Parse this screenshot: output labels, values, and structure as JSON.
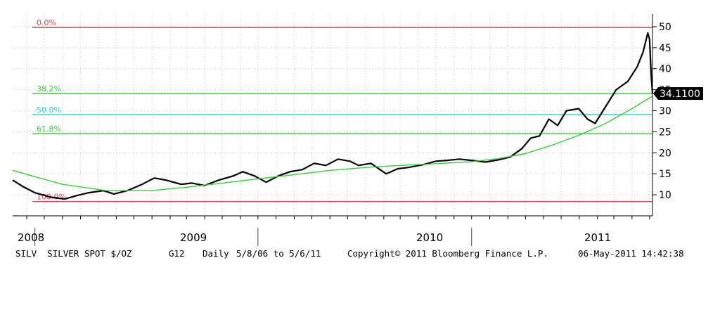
{
  "chart_data": {
    "type": "line",
    "title": "",
    "xlabel": "",
    "ylabel": "",
    "ylim": [
      5,
      53
    ],
    "xlim": [
      "2008-05-08",
      "2011-05-06"
    ],
    "y_ticks": [
      10,
      15,
      20,
      25,
      30,
      35,
      40,
      45,
      50
    ],
    "x_labels": [
      {
        "label": "2008",
        "date": "2008-05-08"
      },
      {
        "label": "2009",
        "date": "2009-01-01"
      },
      {
        "label": "2010",
        "date": "2010-01-01"
      },
      {
        "label": "2011",
        "date": "2011-01-01"
      }
    ],
    "year_separators": [
      "2008-06-15",
      "2009-07-01",
      "2010-07-01"
    ],
    "grid": true,
    "last_value_label": "34.1100",
    "fib_levels": [
      {
        "label": "0.0%",
        "value": 49.8,
        "color": "#d44a4a"
      },
      {
        "label": "38.2%",
        "value": 34.1,
        "color": "#3ec93e"
      },
      {
        "label": "50.0%",
        "value": 29.1,
        "color": "#36c8d8"
      },
      {
        "label": "61.8%",
        "value": 24.6,
        "color": "#3ec93e"
      },
      {
        "label": "100.0%",
        "value": 8.4,
        "color": "#d44a4a"
      }
    ],
    "series": [
      {
        "color": "#000000",
        "x": [
          "2008-05-08",
          "2008-05-25",
          "2008-06-15",
          "2008-07-10",
          "2008-08-05",
          "2008-08-25",
          "2008-09-15",
          "2008-10-10",
          "2008-10-28",
          "2008-11-20",
          "2008-12-15",
          "2009-01-05",
          "2009-01-25",
          "2009-02-20",
          "2009-03-10",
          "2009-04-01",
          "2009-04-25",
          "2009-05-20",
          "2009-06-05",
          "2009-06-25",
          "2009-07-15",
          "2009-08-05",
          "2009-08-25",
          "2009-09-15",
          "2009-10-05",
          "2009-10-25",
          "2009-11-15",
          "2009-12-05",
          "2009-12-20",
          "2010-01-10",
          "2010-02-05",
          "2010-02-25",
          "2010-03-15",
          "2010-04-10",
          "2010-05-01",
          "2010-05-20",
          "2010-06-10",
          "2010-07-01",
          "2010-07-25",
          "2010-08-15",
          "2010-09-05",
          "2010-09-25",
          "2010-10-10",
          "2010-10-25",
          "2010-11-10",
          "2010-11-25",
          "2010-12-10",
          "2010-12-31",
          "2011-01-15",
          "2011-01-28",
          "2011-02-15",
          "2011-03-05",
          "2011-03-25",
          "2011-04-10",
          "2011-04-20",
          "2011-04-28",
          "2011-05-01",
          "2011-05-04",
          "2011-05-06"
        ],
        "y": [
          13.5,
          12.0,
          10.5,
          9.5,
          9.0,
          9.8,
          10.5,
          11.0,
          10.2,
          11.0,
          12.5,
          14.0,
          13.5,
          12.5,
          12.8,
          12.2,
          13.5,
          14.5,
          15.5,
          14.5,
          13.0,
          14.5,
          15.5,
          16.0,
          17.5,
          17.0,
          18.5,
          18.0,
          17.0,
          17.5,
          15.0,
          16.2,
          16.5,
          17.2,
          18.0,
          18.2,
          18.5,
          18.2,
          17.8,
          18.3,
          19.0,
          21.0,
          23.5,
          24.0,
          28.0,
          26.5,
          30.0,
          30.5,
          28.0,
          27.0,
          31.0,
          35.0,
          37.0,
          40.5,
          44.0,
          48.5,
          47.0,
          38.0,
          34.11
        ]
      },
      {
        "color": "#3ec93e",
        "x": [
          "2008-05-08",
          "2008-08-01",
          "2008-10-15",
          "2009-01-01",
          "2009-03-01",
          "2009-05-01",
          "2009-07-01",
          "2009-09-01",
          "2009-11-01",
          "2010-01-01",
          "2010-03-01",
          "2010-05-01",
          "2010-07-01",
          "2010-08-15",
          "2010-10-01",
          "2010-11-15",
          "2011-01-01",
          "2011-02-15",
          "2011-04-01",
          "2011-05-06"
        ],
        "y": [
          15.8,
          12.5,
          11.0,
          11.0,
          11.8,
          12.8,
          13.8,
          14.8,
          15.8,
          16.5,
          17.0,
          17.4,
          17.9,
          18.6,
          19.8,
          21.8,
          24.2,
          27.0,
          30.5,
          33.5
        ]
      }
    ]
  },
  "footer": {
    "ticker": "SILV  SILVER SPOT $/OZ",
    "code": "G12",
    "frequency": "Daily",
    "range": "5/8/06 to 5/6/11",
    "copyright": "Copyright© 2011 Bloomberg Finance L.P.",
    "timestamp": "06-May-2011 14:42:38"
  }
}
